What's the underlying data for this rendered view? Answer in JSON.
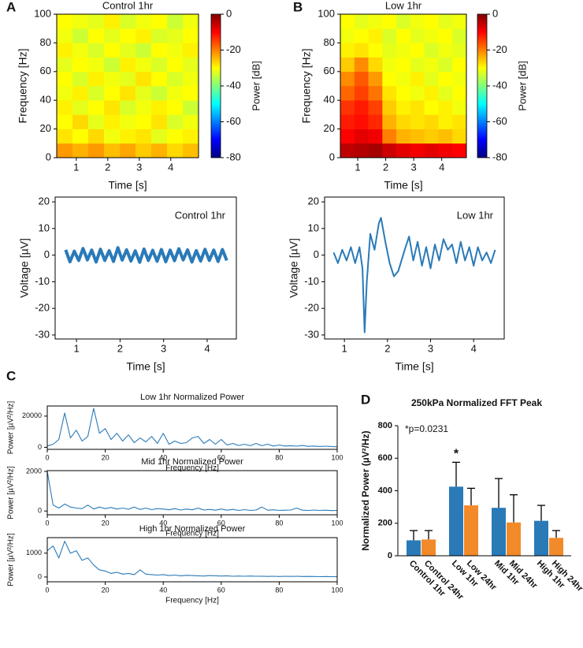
{
  "chart_data": [
    {
      "type": "heatmap",
      "panel": "A",
      "title": "Control 1hr",
      "xlabel": "Time [s]",
      "ylabel": "Frequency [Hz]",
      "colorbar_label": "Power [dB]",
      "xlim": [
        0.38,
        4.88
      ],
      "ylim": [
        0,
        100
      ],
      "xticks": [
        1,
        2,
        3,
        4
      ],
      "yticks": [
        0,
        20,
        40,
        60,
        80,
        100
      ],
      "clim": [
        -80,
        0
      ],
      "cticks": [
        0,
        -20,
        -40,
        -60,
        -80
      ],
      "colormap": "jet",
      "z": [
        [
          -22,
          -24,
          -22,
          -25,
          -23,
          -26,
          -24,
          -27,
          -25
        ],
        [
          -28,
          -30,
          -27,
          -31,
          -29,
          -28,
          -32,
          -30,
          -29
        ],
        [
          -30,
          -27,
          -32,
          -29,
          -31,
          -30,
          -28,
          -33,
          -31
        ],
        [
          -29,
          -32,
          -30,
          -28,
          -33,
          -31,
          -29,
          -30,
          -34
        ],
        [
          -31,
          -29,
          -33,
          -30,
          -28,
          -32,
          -34,
          -31,
          -30
        ],
        [
          -30,
          -33,
          -29,
          -31,
          -32,
          -28,
          -30,
          -33,
          -31
        ],
        [
          -32,
          -30,
          -31,
          -34,
          -29,
          -31,
          -33,
          -30,
          -32
        ],
        [
          -29,
          -31,
          -33,
          -30,
          -32,
          -34,
          -30,
          -31,
          -29
        ],
        [
          -31,
          -34,
          -30,
          -32,
          -30,
          -29,
          -33,
          -32,
          -30
        ],
        [
          -30,
          -31,
          -32,
          -29,
          -33,
          -31,
          -30,
          -34,
          -31
        ]
      ]
    },
    {
      "type": "heatmap",
      "panel": "B",
      "title": "Low 1hr",
      "xlabel": "Time [s]",
      "ylabel": "Frequency [Hz]",
      "colorbar_label": "Power [dB]",
      "xlim": [
        0.38,
        4.88
      ],
      "ylim": [
        0,
        100
      ],
      "xticks": [
        1,
        2,
        3,
        4
      ],
      "yticks": [
        0,
        20,
        40,
        60,
        80,
        100
      ],
      "clim": [
        -80,
        0
      ],
      "cticks": [
        0,
        -20,
        -40,
        -60,
        -80
      ],
      "colormap": "jet",
      "z": [
        [
          -5,
          -4,
          -3,
          -6,
          -8,
          -9,
          -8,
          -9,
          -10
        ],
        [
          -10,
          -8,
          -9,
          -20,
          -24,
          -25,
          -26,
          -25,
          -27
        ],
        [
          -12,
          -11,
          -13,
          -24,
          -27,
          -28,
          -27,
          -29,
          -28
        ],
        [
          -14,
          -12,
          -15,
          -26,
          -29,
          -28,
          -30,
          -29,
          -31
        ],
        [
          -18,
          -15,
          -19,
          -28,
          -30,
          -31,
          -29,
          -32,
          -30
        ],
        [
          -21,
          -17,
          -22,
          -30,
          -31,
          -29,
          -32,
          -30,
          -31
        ],
        [
          -26,
          -21,
          -27,
          -31,
          -30,
          -32,
          -31,
          -33,
          -30
        ],
        [
          -29,
          -28,
          -30,
          -32,
          -31,
          -30,
          -33,
          -31,
          -32
        ],
        [
          -31,
          -30,
          -29,
          -33,
          -30,
          -32,
          -31,
          -30,
          -33
        ],
        [
          -30,
          -32,
          -31,
          -30,
          -33,
          -31,
          -30,
          -32,
          -31
        ]
      ]
    },
    {
      "type": "line",
      "title": "Control 1hr",
      "xlabel": "Time [s]",
      "ylabel": "Voltage [µV]",
      "color": "#2a7ab8",
      "xlim": [
        0.51,
        4.67
      ],
      "ylim": [
        -31.5,
        21.8
      ],
      "xticks": [
        1,
        2,
        3,
        4
      ],
      "yticks": [
        20,
        10,
        0,
        -10,
        -20,
        -30
      ],
      "x": [
        0.75,
        0.85,
        0.95,
        1.05,
        1.15,
        1.25,
        1.35,
        1.45,
        1.55,
        1.65,
        1.75,
        1.85,
        1.95,
        2.05,
        2.15,
        2.25,
        2.35,
        2.45,
        2.55,
        2.65,
        2.75,
        2.85,
        2.95,
        3.05,
        3.15,
        3.25,
        3.35,
        3.45,
        3.55,
        3.65,
        3.75,
        3.85,
        3.95,
        4.05,
        4.15,
        4.25,
        4.35,
        4.45
      ],
      "values": [
        2,
        -2.5,
        1.5,
        -2,
        2.5,
        -1.8,
        1.9,
        -2.6,
        2.2,
        -2,
        1.7,
        -2.4,
        2.8,
        -1.9,
        2,
        -2.2,
        1.6,
        -2.7,
        2.3,
        -2,
        1.8,
        -2.3,
        2.1,
        -2.5,
        1.9,
        -2.1,
        2.4,
        -1.8,
        2,
        -2.6,
        1.7,
        -2.2,
        2.2,
        -2,
        1.9,
        -2.4,
        2.1,
        -2
      ]
    },
    {
      "type": "line",
      "title": "Low 1hr",
      "xlabel": "Time [s]",
      "ylabel": "Voltage [µV]",
      "color": "#2a7ab8",
      "xlim": [
        0.54,
        4.71
      ],
      "ylim": [
        -31.5,
        21.8
      ],
      "xticks": [
        1,
        2,
        3,
        4
      ],
      "yticks": [
        20,
        10,
        0,
        -10,
        -20,
        -30
      ],
      "x": [
        0.75,
        0.85,
        0.95,
        1.05,
        1.15,
        1.25,
        1.35,
        1.42,
        1.47,
        1.52,
        1.6,
        1.7,
        1.8,
        1.85,
        1.95,
        2.05,
        2.15,
        2.25,
        2.4,
        2.5,
        2.6,
        2.7,
        2.8,
        2.9,
        3.0,
        3.1,
        3.2,
        3.3,
        3.4,
        3.5,
        3.6,
        3.7,
        3.8,
        3.9,
        4.0,
        4.1,
        4.2,
        4.3,
        4.4,
        4.5
      ],
      "values": [
        1,
        -3,
        2,
        -2,
        3,
        -3,
        3,
        -5,
        -29,
        -10,
        8,
        2,
        12,
        14,
        5,
        -3,
        -8,
        -6,
        2,
        7,
        -2,
        5,
        -4,
        3,
        -5,
        4,
        -2,
        6,
        2,
        4,
        -3,
        5,
        -2,
        3,
        -4,
        3,
        -2,
        1,
        -3,
        2
      ]
    },
    {
      "type": "line",
      "panel": "C",
      "title": "Low 1hr Normalized Power",
      "xlabel": "Frequency [Hz]",
      "ylabel": "Power [µV²/Hz]",
      "color": "#2a7ab8",
      "xlim": [
        0,
        100
      ],
      "ylim": [
        -1300,
        26500
      ],
      "xticks": [
        0,
        20,
        40,
        60,
        80,
        100
      ],
      "yticks": [
        0,
        20000
      ],
      "x": [
        0,
        2,
        4,
        6,
        8,
        10,
        12,
        14,
        16,
        18,
        20,
        22,
        24,
        26,
        28,
        30,
        32,
        34,
        36,
        38,
        40,
        42,
        44,
        46,
        48,
        50,
        52,
        54,
        56,
        58,
        60,
        62,
        64,
        66,
        68,
        70,
        72,
        74,
        76,
        78,
        80,
        82,
        84,
        86,
        88,
        90,
        92,
        94,
        96,
        98,
        100
      ],
      "values": [
        800,
        2000,
        5000,
        22000,
        6000,
        11000,
        4000,
        7000,
        25000,
        9000,
        12000,
        5000,
        9000,
        4000,
        8000,
        3000,
        6000,
        3500,
        7000,
        2500,
        9000,
        2000,
        4000,
        2500,
        3000,
        6000,
        7000,
        2500,
        5000,
        2000,
        5000,
        1500,
        2500,
        1200,
        2000,
        1000,
        2500,
        1000,
        2000,
        800,
        1500,
        800,
        1000,
        700,
        1200,
        600,
        800,
        500,
        700,
        500,
        300
      ]
    },
    {
      "type": "line",
      "title": "Mid 1hr Normalized Power",
      "xlabel": "Frequency [Hz]",
      "ylabel": "Power [µV²/Hz]",
      "color": "#2a7ab8",
      "xlim": [
        0,
        100
      ],
      "ylim": [
        -190,
        2040
      ],
      "xticks": [
        0,
        20,
        40,
        60,
        80,
        100
      ],
      "yticks": [
        0,
        2000
      ],
      "x": [
        0,
        2,
        4,
        6,
        8,
        10,
        12,
        14,
        16,
        18,
        20,
        22,
        24,
        26,
        28,
        30,
        32,
        34,
        36,
        38,
        40,
        42,
        44,
        46,
        48,
        50,
        52,
        54,
        56,
        58,
        60,
        62,
        64,
        66,
        68,
        70,
        72,
        74,
        76,
        78,
        80,
        82,
        84,
        86,
        88,
        90,
        92,
        94,
        96,
        98,
        100
      ],
      "values": [
        2000,
        300,
        150,
        350,
        200,
        150,
        120,
        300,
        100,
        200,
        120,
        180,
        100,
        150,
        90,
        200,
        80,
        150,
        70,
        120,
        100,
        60,
        120,
        50,
        100,
        60,
        150,
        50,
        80,
        40,
        100,
        40,
        80,
        30,
        70,
        30,
        50,
        200,
        40,
        60,
        30,
        40,
        50,
        150,
        40,
        30,
        50,
        30,
        40,
        20,
        30
      ]
    },
    {
      "type": "line",
      "title": "High 1hr Normalized Power",
      "xlabel": "Frequency [Hz]",
      "ylabel": "Power [µV²/Hz]",
      "color": "#2a7ab8",
      "xlim": [
        0,
        100
      ],
      "ylim": [
        -200,
        1650
      ],
      "xticks": [
        0,
        20,
        40,
        60,
        80,
        100
      ],
      "yticks": [
        0,
        1000
      ],
      "x": [
        0,
        2,
        4,
        6,
        8,
        10,
        12,
        14,
        16,
        18,
        20,
        22,
        24,
        26,
        28,
        30,
        32,
        34,
        36,
        38,
        40,
        42,
        44,
        46,
        48,
        50,
        52,
        54,
        56,
        58,
        60,
        62,
        64,
        66,
        68,
        70,
        72,
        74,
        76,
        78,
        80,
        82,
        84,
        86,
        88,
        90,
        92,
        94,
        96,
        98,
        100
      ],
      "values": [
        1100,
        1300,
        800,
        1500,
        1000,
        1100,
        700,
        800,
        500,
        300,
        250,
        150,
        200,
        120,
        150,
        100,
        300,
        120,
        100,
        80,
        100,
        60,
        80,
        50,
        70,
        60,
        50,
        40,
        60,
        50,
        40,
        50,
        30,
        40,
        30,
        40,
        30,
        35,
        25,
        30,
        20,
        30,
        25,
        30,
        20,
        25,
        20,
        15,
        20,
        15,
        10
      ]
    },
    {
      "type": "bar",
      "panel": "D",
      "title": "250kPa Normalized FFT Peak",
      "ylabel": "Normalized Power (µV²/Hz)",
      "categories": [
        "Control 1hr",
        "Control 24hr",
        "Low 1hr",
        "Low 24hr",
        "Mid 1hr",
        "Mid 24hr",
        "High 1hr",
        "High 24hr"
      ],
      "values": [
        95,
        100,
        425,
        310,
        295,
        205,
        215,
        110
      ],
      "errors": [
        60,
        55,
        150,
        105,
        180,
        170,
        95,
        45
      ],
      "colors": [
        "#2a7ab8",
        "#f28a2a",
        "#2a7ab8",
        "#f28a2a",
        "#2a7ab8",
        "#f28a2a",
        "#2a7ab8",
        "#f28a2a"
      ],
      "ylim": [
        0,
        800
      ],
      "yticks": [
        0,
        200,
        400,
        600,
        800
      ],
      "annotations": [
        "*p=0.0231",
        "*"
      ]
    }
  ]
}
